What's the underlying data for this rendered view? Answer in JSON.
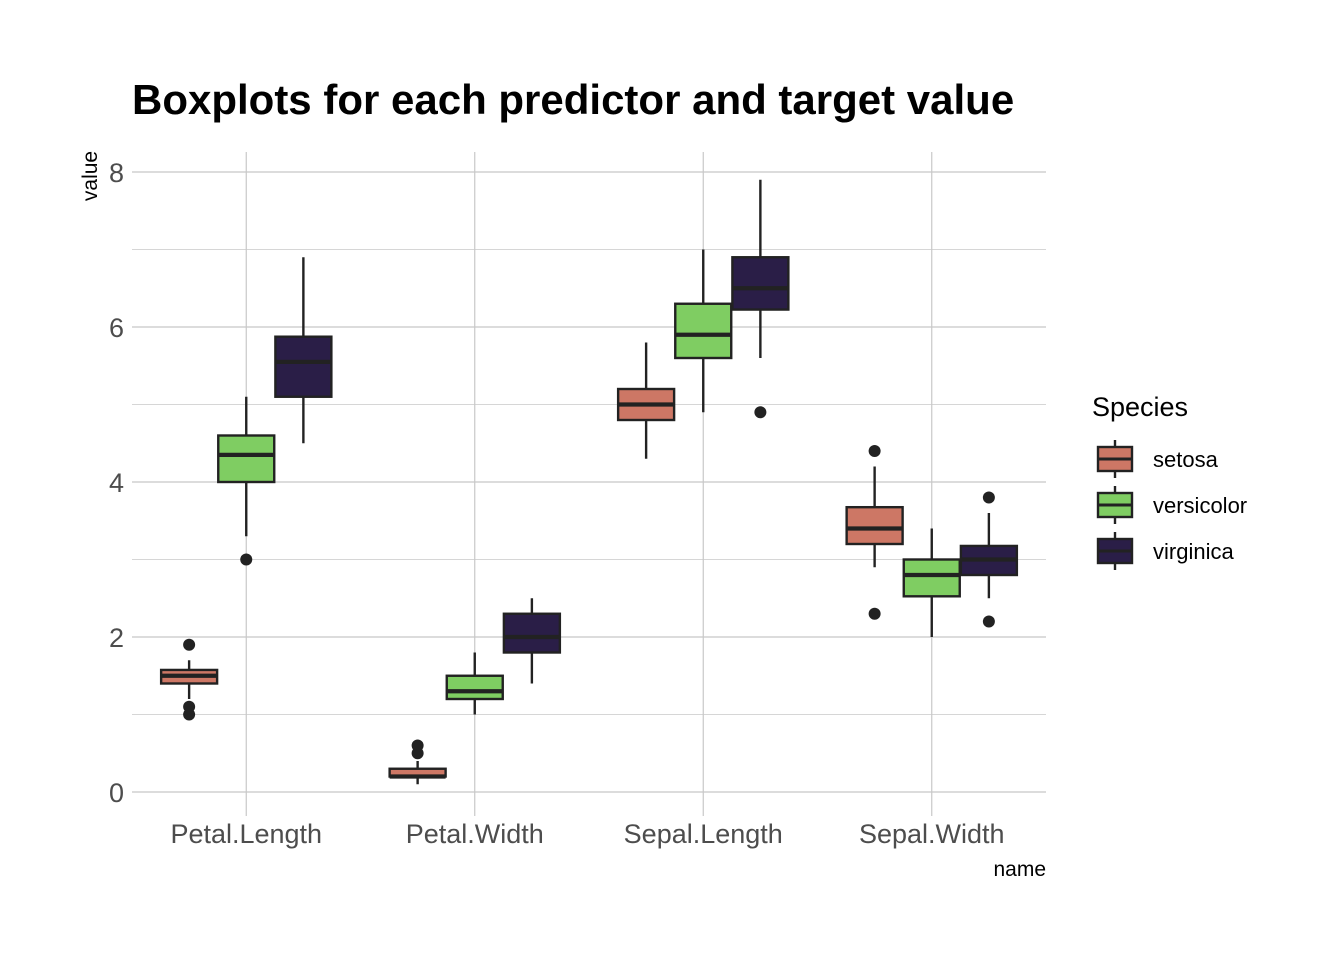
{
  "chart_data": {
    "type": "boxplot",
    "title": "Boxplots for each predictor and target value",
    "xlabel": "name",
    "ylabel": "value",
    "ylim": [
      0,
      8.3
    ],
    "y_ticks": [
      0,
      2,
      4,
      6,
      8
    ],
    "grid": true,
    "legend_position": "right",
    "legend_title": "Species",
    "categories": [
      "Petal.Length",
      "Petal.Width",
      "Sepal.Length",
      "Sepal.Width"
    ],
    "series": [
      {
        "name": "setosa",
        "color": "#cd7765",
        "boxes": [
          {
            "whisker_low": 1.2,
            "q1": 1.4,
            "median": 1.5,
            "q3": 1.575,
            "whisker_high": 1.7,
            "outliers": [
              1.0,
              1.1,
              1.9
            ]
          },
          {
            "whisker_low": 0.1,
            "q1": 0.2,
            "median": 0.2,
            "q3": 0.3,
            "whisker_high": 0.4,
            "outliers": [
              0.5,
              0.6
            ]
          },
          {
            "whisker_low": 4.3,
            "q1": 4.8,
            "median": 5.0,
            "q3": 5.2,
            "whisker_high": 5.8,
            "outliers": []
          },
          {
            "whisker_low": 2.9,
            "q1": 3.2,
            "median": 3.4,
            "q3": 3.675,
            "whisker_high": 4.2,
            "outliers": [
              2.3,
              4.4
            ]
          }
        ]
      },
      {
        "name": "versicolor",
        "color": "#7fcd62",
        "boxes": [
          {
            "whisker_low": 3.3,
            "q1": 4.0,
            "median": 4.35,
            "q3": 4.6,
            "whisker_high": 5.1,
            "outliers": [
              3.0
            ]
          },
          {
            "whisker_low": 1.0,
            "q1": 1.2,
            "median": 1.3,
            "q3": 1.5,
            "whisker_high": 1.8,
            "outliers": []
          },
          {
            "whisker_low": 4.9,
            "q1": 5.6,
            "median": 5.9,
            "q3": 6.3,
            "whisker_high": 7.0,
            "outliers": []
          },
          {
            "whisker_low": 2.0,
            "q1": 2.525,
            "median": 2.8,
            "q3": 3.0,
            "whisker_high": 3.4,
            "outliers": []
          }
        ]
      },
      {
        "name": "virginica",
        "color": "#2a1e47",
        "boxes": [
          {
            "whisker_low": 4.5,
            "q1": 5.1,
            "median": 5.55,
            "q3": 5.875,
            "whisker_high": 6.9,
            "outliers": []
          },
          {
            "whisker_low": 1.4,
            "q1": 1.8,
            "median": 2.0,
            "q3": 2.3,
            "whisker_high": 2.5,
            "outliers": []
          },
          {
            "whisker_low": 5.6,
            "q1": 6.225,
            "median": 6.5,
            "q3": 6.9,
            "whisker_high": 7.9,
            "outliers": [
              4.9
            ]
          },
          {
            "whisker_low": 2.5,
            "q1": 2.8,
            "median": 3.0,
            "q3": 3.175,
            "whisker_high": 3.6,
            "outliers": [
              2.2,
              3.8
            ]
          }
        ]
      }
    ]
  }
}
